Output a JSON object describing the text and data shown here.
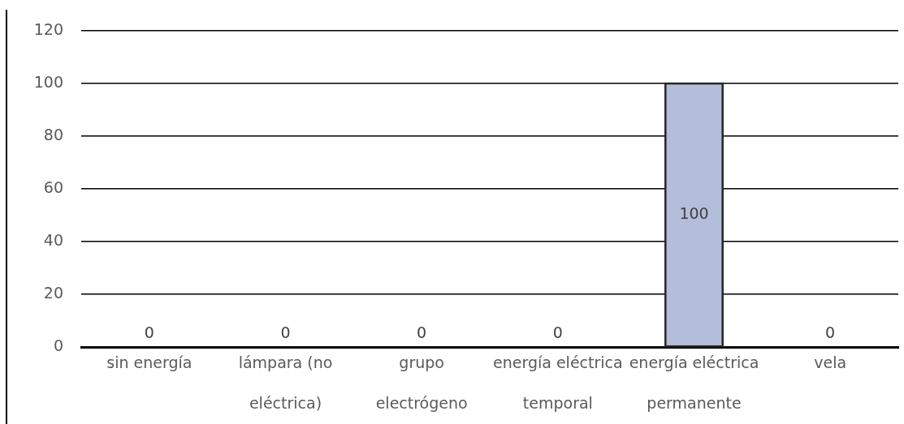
{
  "chart_data": {
    "type": "bar",
    "categories": [
      "sin energía",
      "lámpara (no eléctrica)",
      "grupo electrógeno",
      "energía eléctrica temporal",
      "energía eléctrica permanente",
      "vela"
    ],
    "values": [
      0,
      0,
      0,
      0,
      100,
      0
    ],
    "color": "#b4bdd9",
    "ylim": [
      0,
      120
    ],
    "yticks": [
      0,
      20,
      40,
      60,
      80,
      100,
      120
    ],
    "grid": "y",
    "data_labels": true
  }
}
